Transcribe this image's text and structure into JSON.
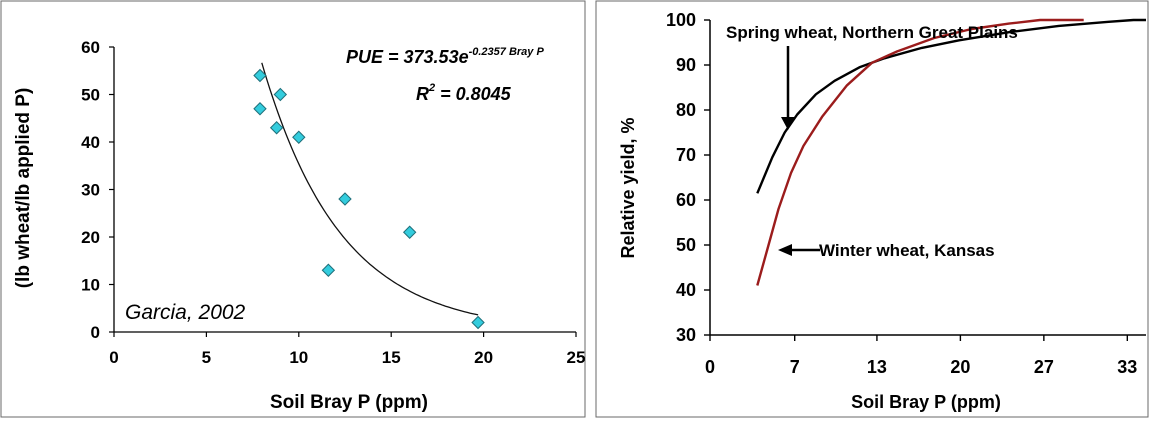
{
  "chart_data": [
    {
      "type": "scatter",
      "ylabel": "(lb wheat/lb applied P)",
      "xlabel": "Soil Bray P (ppm)",
      "xlim": [
        0,
        25
      ],
      "ylim": [
        0,
        60
      ],
      "xticks": [
        "0",
        "5",
        "10",
        "15",
        "20",
        "25"
      ],
      "yticks": [
        "0",
        "10",
        "20",
        "30",
        "40",
        "50",
        "60"
      ],
      "points": [
        {
          "x": 7.9,
          "y": 54
        },
        {
          "x": 7.9,
          "y": 47
        },
        {
          "x": 9.0,
          "y": 50
        },
        {
          "x": 8.8,
          "y": 43
        },
        {
          "x": 10.0,
          "y": 41
        },
        {
          "x": 11.6,
          "y": 13
        },
        {
          "x": 12.5,
          "y": 28
        },
        {
          "x": 16.0,
          "y": 21
        },
        {
          "x": 19.7,
          "y": 2
        }
      ],
      "fit": {
        "a": 373.53,
        "b": -0.2357,
        "x_from": 8.0,
        "x_to": 19.7
      },
      "equation_main": "PUE = 373.53e",
      "equation_exp": "-0.2357 Bray P",
      "r2_label": "R",
      "r2_sup": "2",
      "r2_value": " = 0.8045",
      "source_note": "Garcia, 2002",
      "marker_color": "#33ccdd",
      "marker_edge": "#1f6f7a",
      "grid": false
    },
    {
      "type": "line",
      "ylabel": "Relative yield, %",
      "xlabel": "Soil Bray P (ppm)",
      "xlim": [
        0,
        35
      ],
      "ylim": [
        30,
        100
      ],
      "xticks": [
        "0",
        "7",
        "13",
        "20",
        "27",
        "33"
      ],
      "xtick_values": [
        0,
        6.8,
        13.4,
        20.1,
        26.8,
        33.5
      ],
      "yticks": [
        "30",
        "40",
        "50",
        "60",
        "70",
        "80",
        "90",
        "100"
      ],
      "series": [
        {
          "name": "Spring wheat, Northern Great Plains",
          "color": "#000000",
          "x": [
            3.8,
            5.0,
            6.0,
            7.0,
            8.5,
            10.0,
            12.0,
            14.0,
            17.0,
            20.0,
            24.0,
            28.0,
            32.0,
            34.0,
            35.0
          ],
          "y": [
            61.5,
            69.5,
            75.0,
            79.0,
            83.5,
            86.5,
            89.5,
            91.5,
            93.8,
            95.5,
            97.3,
            98.7,
            99.6,
            100.0,
            100.0
          ]
        },
        {
          "name": "Winter wheat, Kansas",
          "color": "#9b1c1c",
          "x": [
            3.8,
            4.6,
            5.5,
            6.5,
            7.5,
            9.0,
            11.0,
            13.0,
            15.0,
            18.0,
            21.0,
            24.0,
            26.5,
            28.0,
            30.0
          ],
          "y": [
            41.0,
            49.0,
            58.0,
            66.0,
            72.0,
            78.5,
            85.5,
            90.5,
            93.0,
            96.0,
            98.0,
            99.2,
            100.0,
            100.0,
            100.0
          ]
        }
      ],
      "grid": false
    }
  ]
}
